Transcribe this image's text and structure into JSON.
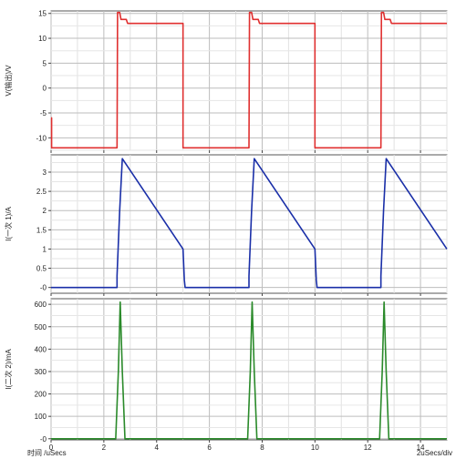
{
  "chart_data": [
    {
      "type": "line",
      "title": "",
      "ylabel": "V(输出)/V",
      "xlim": [
        0,
        15
      ],
      "ylim": [
        -12.5,
        15.5
      ],
      "yticks": [
        -10,
        -5,
        0,
        5,
        10,
        15
      ],
      "grid": true,
      "series": [
        {
          "color": "#e03030",
          "x": [
            0,
            0.02,
            0.02,
            2.5,
            2.52,
            2.6,
            2.65,
            2.85,
            2.9,
            5.0,
            5.0,
            7.5,
            7.52,
            7.6,
            7.65,
            7.85,
            7.9,
            10.0,
            10.0,
            12.5,
            12.52,
            12.6,
            12.65,
            12.85,
            12.9,
            15.0
          ],
          "y": [
            -6,
            -6,
            -12,
            -12,
            15.2,
            15.2,
            13.8,
            13.8,
            13,
            13,
            -12,
            -12,
            15.2,
            15.2,
            13.8,
            13.8,
            13,
            13,
            -12,
            -12,
            15.2,
            15.2,
            13.8,
            13.8,
            13,
            13
          ]
        }
      ]
    },
    {
      "type": "line",
      "title": "",
      "ylabel": "I(一次 1)/A",
      "xlim": [
        0,
        15
      ],
      "ylim": [
        -0.15,
        3.45
      ],
      "yticks": [
        0,
        0.5,
        1,
        1.5,
        2,
        2.5,
        3
      ],
      "ytick_labels": [
        "-0",
        "0.5",
        "1",
        "1.5",
        "2",
        "2.5",
        "3"
      ],
      "grid": true,
      "series": [
        {
          "color": "#1a2fa8",
          "x": [
            0,
            2.5,
            2.5,
            2.6,
            2.7,
            5.0,
            5.05,
            5.08,
            7.5,
            7.5,
            7.6,
            7.7,
            10.0,
            10.05,
            10.08,
            12.5,
            12.5,
            12.6,
            12.7,
            15.0
          ],
          "y": [
            0,
            0,
            0.3,
            2.0,
            3.35,
            1.0,
            0.2,
            0,
            0,
            0.3,
            2.0,
            3.35,
            1.0,
            0.2,
            0,
            0,
            0.3,
            2.0,
            3.35,
            1.0
          ]
        }
      ]
    },
    {
      "type": "line",
      "title": "",
      "ylabel": "I(二次 2)/mA",
      "xlabel": "时间 /uSecs",
      "xlim": [
        0,
        15
      ],
      "ylim": [
        -5,
        625
      ],
      "yticks": [
        0,
        100,
        200,
        300,
        400,
        500,
        600
      ],
      "ytick_labels": [
        "-0",
        "100",
        "200",
        "300",
        "400",
        "500",
        "600"
      ],
      "xticks": [
        0,
        2,
        4,
        6,
        8,
        10,
        12,
        14
      ],
      "grid": true,
      "series": [
        {
          "color": "#2a8a2a",
          "x": [
            0,
            2.45,
            2.55,
            2.62,
            2.7,
            2.8,
            7.45,
            7.55,
            7.62,
            7.7,
            7.8,
            12.45,
            12.55,
            12.62,
            12.7,
            12.8,
            15.0
          ],
          "y": [
            0,
            0,
            300,
            610,
            300,
            0,
            0,
            300,
            610,
            300,
            0,
            0,
            300,
            610,
            300,
            0,
            0
          ]
        }
      ]
    }
  ],
  "scale_note": "2uSecs/div"
}
